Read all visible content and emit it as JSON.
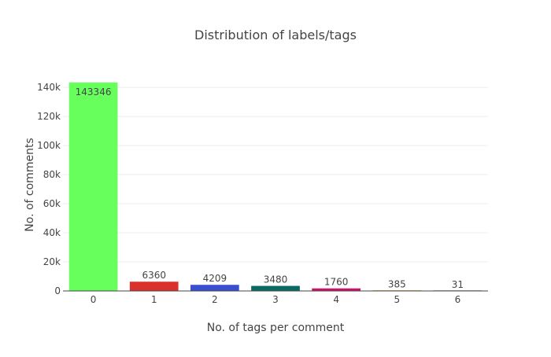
{
  "chart_data": {
    "type": "bar",
    "title": "Distribution of labels/tags",
    "xlabel": "No. of tags per comment",
    "ylabel": "No. of comments",
    "categories": [
      "0",
      "1",
      "2",
      "3",
      "4",
      "5",
      "6"
    ],
    "values": [
      143346,
      6360,
      4209,
      3480,
      1760,
      385,
      31
    ],
    "data_labels": [
      "143346",
      "6360",
      "4209",
      "3480",
      "1760",
      "385",
      "31"
    ],
    "colors": [
      "#66ff5c",
      "#d9312b",
      "#3a4fcf",
      "#0a6b62",
      "#d10f6b",
      "#d49a3a",
      "#9a9a9a"
    ],
    "ylim": [
      0,
      146000
    ],
    "y_ticks": [
      0,
      20000,
      40000,
      60000,
      80000,
      100000,
      120000,
      140000
    ],
    "y_tick_labels": [
      "0",
      "20k",
      "40k",
      "60k",
      "80k",
      "100k",
      "120k",
      "140k"
    ],
    "grid": true,
    "legend": "none"
  }
}
